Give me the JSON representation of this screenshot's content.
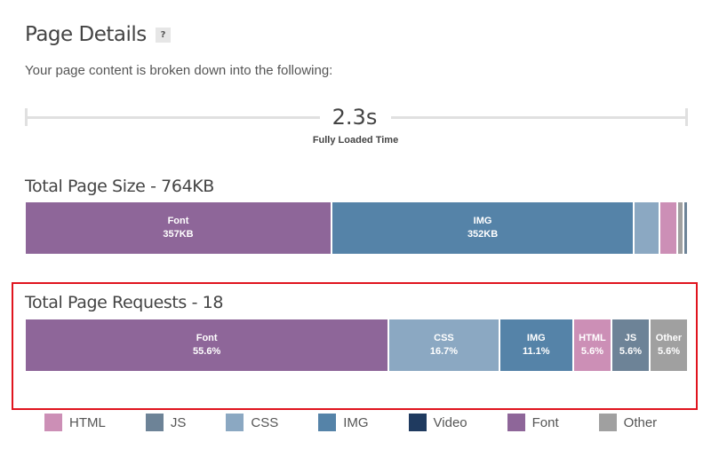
{
  "header": {
    "title": "Page Details",
    "help_label": "?",
    "subtitle": "Your page content is broken down into the following:"
  },
  "timeline": {
    "value": "2.3s",
    "label": "Fully Loaded Time"
  },
  "colors": {
    "HTML": "#cc8fb6",
    "JS": "#6d8397",
    "CSS": "#8ba8c2",
    "IMG": "#5583a8",
    "Video": "#1f3a5f",
    "Font": "#8e6699",
    "Other": "#a0a0a0"
  },
  "chart_data": [
    {
      "type": "bar",
      "orientation": "stacked-horizontal",
      "title": "Total Page Size - 764KB",
      "unit": "KB",
      "segments": [
        {
          "category": "Font",
          "value": 357,
          "label": "357KB"
        },
        {
          "category": "IMG",
          "value": 352,
          "label": "352KB"
        },
        {
          "category": "CSS",
          "value": 28,
          "label": ""
        },
        {
          "category": "HTML",
          "value": 19,
          "label": ""
        },
        {
          "category": "Other",
          "value": 5,
          "label": ""
        },
        {
          "category": "JS",
          "value": 3,
          "label": ""
        }
      ]
    },
    {
      "type": "bar",
      "orientation": "stacked-horizontal",
      "title": "Total Page Requests - 18",
      "unit": "%",
      "segments": [
        {
          "category": "Font",
          "value": 55.6,
          "label": "55.6%"
        },
        {
          "category": "CSS",
          "value": 16.7,
          "label": "16.7%"
        },
        {
          "category": "IMG",
          "value": 11.1,
          "label": "11.1%"
        },
        {
          "category": "HTML",
          "value": 5.6,
          "label": "5.6%"
        },
        {
          "category": "JS",
          "value": 5.6,
          "label": "5.6%"
        },
        {
          "category": "Other",
          "value": 5.6,
          "label": "5.6%"
        }
      ]
    }
  ],
  "legend": [
    "HTML",
    "JS",
    "CSS",
    "IMG",
    "Video",
    "Font",
    "Other"
  ]
}
